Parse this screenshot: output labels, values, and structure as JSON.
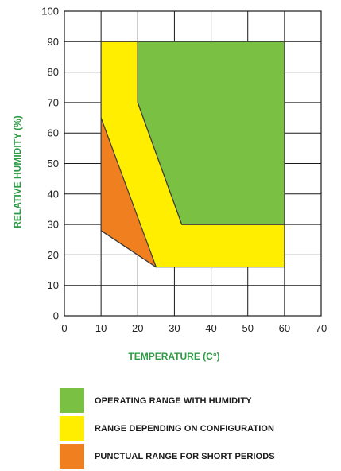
{
  "chart_data": {
    "type": "area",
    "xlabel": "TEMPERATURE (C°)",
    "ylabel": "RELATIVE HUMIDITY (%)",
    "xlim": [
      0,
      70
    ],
    "ylim": [
      0,
      100
    ],
    "xticks": [
      0,
      10,
      20,
      30,
      40,
      50,
      60,
      70
    ],
    "yticks": [
      0,
      10,
      20,
      30,
      40,
      50,
      60,
      70,
      80,
      90,
      100
    ],
    "grid": true,
    "legend_position": "bottom",
    "series": [
      {
        "name": "RANGE DEPENDING ON CONFIGURATION",
        "color": "#ffee00",
        "polygon": [
          [
            10,
            90
          ],
          [
            20,
            90
          ],
          [
            20,
            70
          ],
          [
            32,
            30
          ],
          [
            60,
            30
          ],
          [
            60,
            16
          ],
          [
            25,
            16
          ],
          [
            10,
            28
          ]
        ]
      },
      {
        "name": "OPERATING RANGE WITH HUMIDITY",
        "color": "#7ac143",
        "polygon": [
          [
            20,
            90
          ],
          [
            60,
            90
          ],
          [
            60,
            30
          ],
          [
            32,
            30
          ],
          [
            20,
            70
          ]
        ]
      },
      {
        "name": "PUNCTUAL RANGE FOR SHORT PERIODS",
        "color": "#f07f20",
        "polygon": [
          [
            10,
            65
          ],
          [
            10,
            28
          ],
          [
            25,
            16
          ]
        ]
      }
    ],
    "legend": [
      {
        "label": "OPERATING RANGE WITH HUMIDITY",
        "color": "#7ac143"
      },
      {
        "label": "RANGE DEPENDING ON CONFIGURATION",
        "color": "#ffee00"
      },
      {
        "label": "PUNCTUAL RANGE FOR SHORT PERIODS",
        "color": "#f07f20"
      }
    ],
    "axis_title_color": "#2e9a45"
  }
}
